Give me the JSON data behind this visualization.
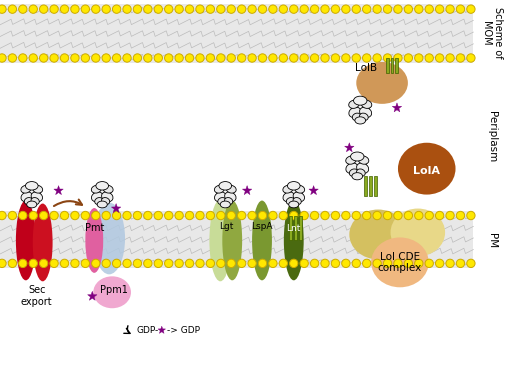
{
  "bg_color": "#ffffff",
  "yellow_dot": "#FFE800",
  "yellow_dot_stroke": "#CCAA00",
  "zigzag_color": "#bbbbbb",
  "colors": {
    "red1": "#C0001A",
    "red2": "#CC1020",
    "blue_blob": "#B0C8E0",
    "pmt_pink": "#E060A0",
    "ppm1_pink": "#F0A8D0",
    "lgt_light": "#C8DC98",
    "lgt_dark": "#90A840",
    "lspa": "#7A9830",
    "lnt": "#4A6A10",
    "lola_brown": "#AA5010",
    "lolb_peach": "#D09858",
    "lol_tan1": "#D4C060",
    "lol_tan2": "#E8D888",
    "lol_peach": "#F0B880",
    "star": "#800080",
    "green_bar": "#8AAA20",
    "arrow_brown": "#8B4513"
  },
  "labels": {
    "scheme_of_mom": "Scheme of\nMOM",
    "periplasm": "Periplasm",
    "pm": "PM",
    "sec_export": "Sec\nexport",
    "pmt": "Pmt",
    "ppm1": "Ppm1",
    "lgt": "Lgt",
    "lspa": "LspA",
    "lnt": "Lnt",
    "lola": "LolA",
    "lolb": "LolB",
    "lol_cde": "Lol CDE\ncomplex",
    "gdp": "GDP-"
  }
}
